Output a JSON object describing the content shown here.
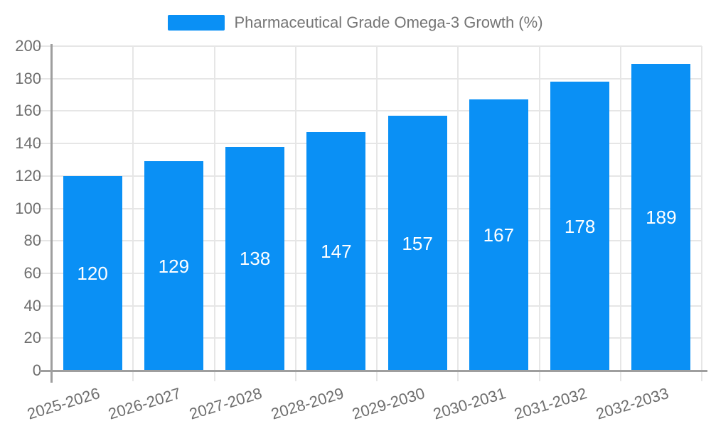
{
  "chart_data": {
    "type": "bar",
    "title": "Pharmaceutical Grade Omega-3 Growth (%)",
    "categories": [
      "2025-2026",
      "2026-2027",
      "2027-2028",
      "2028-2029",
      "2029-2030",
      "2030-2031",
      "2031-2032",
      "2032-2033"
    ],
    "values": [
      120,
      129,
      138,
      147,
      157,
      167,
      178,
      189
    ],
    "ylim": [
      0,
      200
    ],
    "ytick_step": 20,
    "grid": true,
    "legend_position": "top-center",
    "x_label_rotation_deg": -17,
    "colors": {
      "bar": "#0a90f5",
      "bar_label": "#ffffff",
      "grid": "#e6e6e6",
      "axis": "#9e9e9e",
      "tick_label": "#6e6e6e",
      "legend_label": "#757575"
    }
  }
}
